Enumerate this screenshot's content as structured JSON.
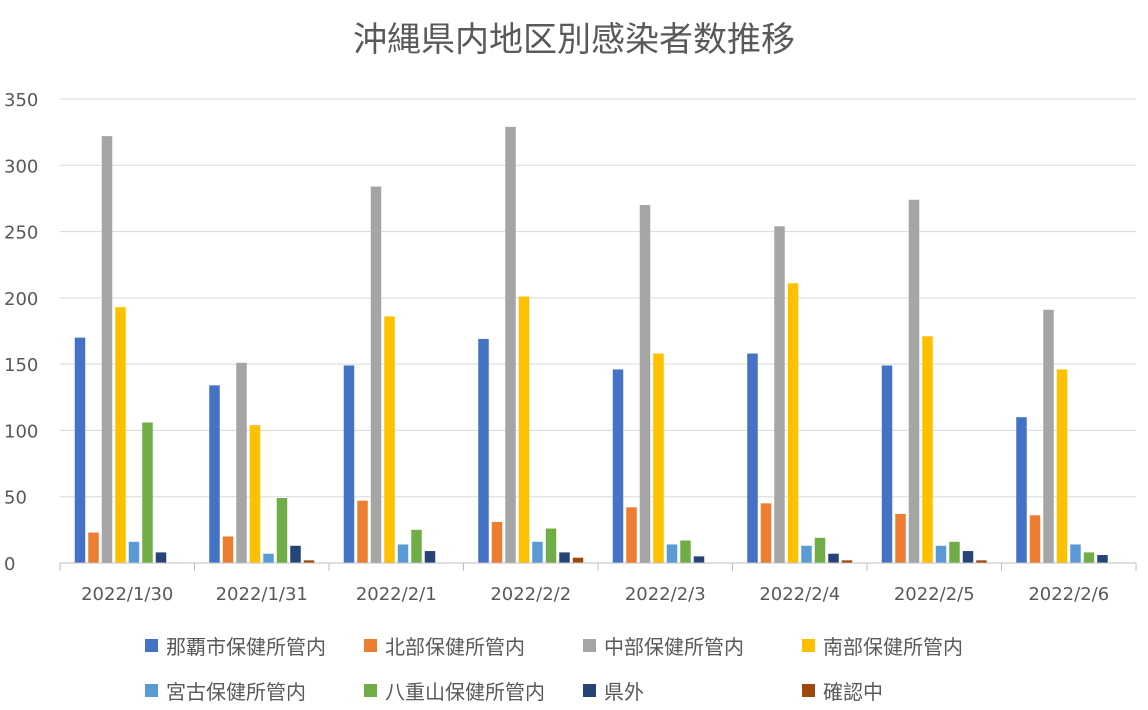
{
  "chart_data": {
    "type": "bar",
    "title": "沖縄県内地区別感染者数推移",
    "categories": [
      "2022/1/30",
      "2022/1/31",
      "2022/2/1",
      "2022/2/2",
      "2022/2/3",
      "2022/2/4",
      "2022/2/5",
      "2022/2/6"
    ],
    "ylim": [
      0,
      350
    ],
    "yticks": [
      0,
      50,
      100,
      150,
      200,
      250,
      300,
      350
    ],
    "grid": true,
    "legend_position": "bottom",
    "series": [
      {
        "name": "那覇市保健所管内",
        "color": "#4472C4",
        "values": [
          170,
          134,
          149,
          169,
          146,
          158,
          149,
          110
        ]
      },
      {
        "name": "北部保健所管内",
        "color": "#ED7D31",
        "values": [
          23,
          20,
          47,
          31,
          42,
          45,
          37,
          36
        ]
      },
      {
        "name": "中部保健所管内",
        "color": "#A5A5A5",
        "values": [
          322,
          151,
          284,
          329,
          270,
          254,
          274,
          191
        ]
      },
      {
        "name": "南部保健所管内",
        "color": "#FFC000",
        "values": [
          193,
          104,
          186,
          201,
          158,
          211,
          171,
          146
        ]
      },
      {
        "name": "宮古保健所管内",
        "color": "#5B9BD5",
        "values": [
          16,
          7,
          14,
          16,
          14,
          13,
          13,
          14
        ]
      },
      {
        "name": "八重山保健所管内",
        "color": "#70AD47",
        "values": [
          106,
          49,
          25,
          26,
          17,
          19,
          16,
          8
        ]
      },
      {
        "name": "県外",
        "color": "#264478",
        "values": [
          8,
          13,
          9,
          8,
          5,
          7,
          9,
          6
        ]
      },
      {
        "name": "確認中",
        "color": "#9E480E",
        "values": [
          0,
          2,
          0,
          4,
          0,
          2,
          2,
          0
        ]
      }
    ]
  }
}
